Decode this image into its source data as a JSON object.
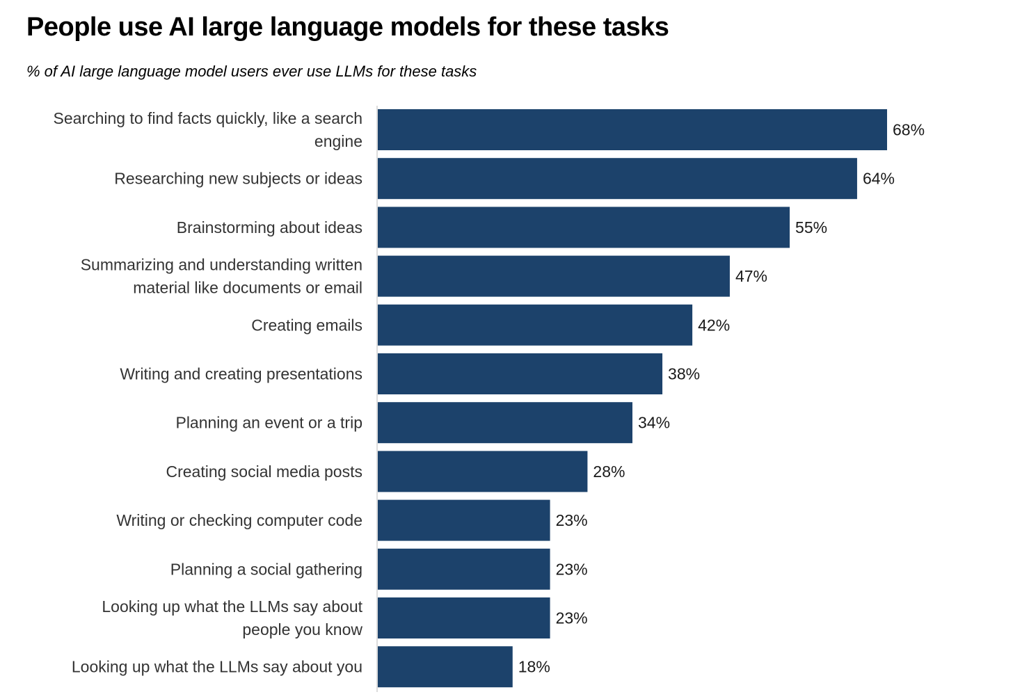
{
  "chart_data": {
    "type": "bar",
    "orientation": "horizontal",
    "title": "People use AI large language models for these tasks",
    "subtitle": "% of AI large language model users ever use LLMs for these tasks",
    "categories": [
      [
        "Searching to find facts quickly, like a search",
        "engine"
      ],
      [
        "Researching new subjects or ideas"
      ],
      [
        "Brainstorming about ideas"
      ],
      [
        "Summarizing and understanding written",
        "material like documents or email"
      ],
      [
        "Creating emails"
      ],
      [
        "Writing and creating presentations"
      ],
      [
        "Planning an event or a trip"
      ],
      [
        "Creating social media posts"
      ],
      [
        "Writing or checking computer code"
      ],
      [
        "Planning a social gathering"
      ],
      [
        "Looking up what the LLMs say about",
        "people you know"
      ],
      [
        "Looking up what the LLMs say about you"
      ]
    ],
    "values": [
      68,
      64,
      55,
      47,
      42,
      38,
      34,
      28,
      23,
      23,
      23,
      18
    ],
    "value_labels": [
      "68%",
      "64%",
      "55%",
      "47%",
      "42%",
      "38%",
      "34%",
      "28%",
      "23%",
      "23%",
      "23%",
      "18%"
    ],
    "xlim": [
      0,
      68
    ],
    "bar_color": "#1c426b",
    "grid": false,
    "legend": "none"
  }
}
